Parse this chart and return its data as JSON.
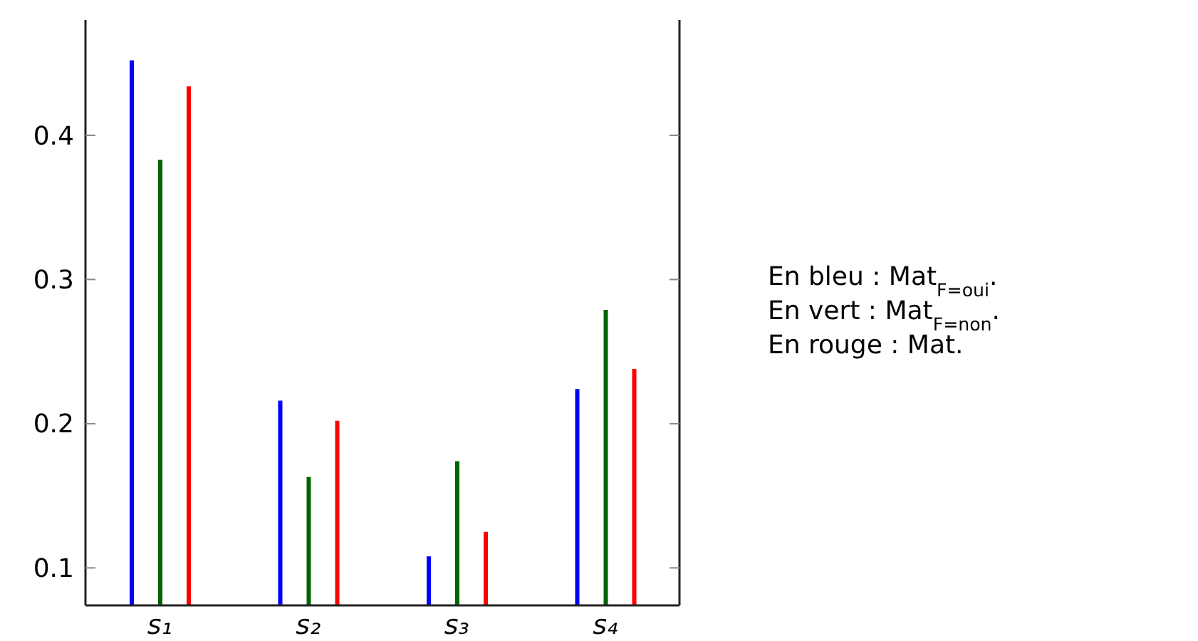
{
  "chart_data": {
    "type": "bar",
    "categories": [
      "s₁",
      "s₂",
      "s₃",
      "s₄"
    ],
    "series": [
      {
        "color": "#0000ff",
        "values": [
          0.452,
          0.216,
          0.108,
          0.224
        ]
      },
      {
        "color": "#006400",
        "values": [
          0.383,
          0.163,
          0.174,
          0.279
        ]
      },
      {
        "color": "#ff0000",
        "values": [
          0.434,
          0.202,
          0.125,
          0.238
        ]
      }
    ],
    "ylim": [
      0.074,
      0.48
    ],
    "yticks": [
      0.1,
      0.2,
      0.3,
      0.4
    ],
    "grid": false,
    "legend": false,
    "annotations": [
      "En bleu  : Mat$_{F=oui}$.",
      "En vert : Mat$_{F=non}$.",
      "En rouge : Mat."
    ]
  }
}
